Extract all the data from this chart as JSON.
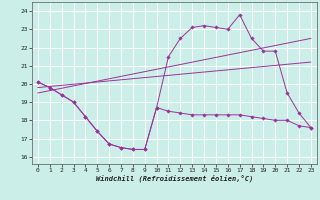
{
  "xlabel": "Windchill (Refroidissement éolien,°C)",
  "background_color": "#cceee8",
  "grid_color": "#ffffff",
  "line_color": "#993399",
  "xlim": [
    -0.5,
    23.5
  ],
  "ylim": [
    15.6,
    24.5
  ],
  "yticks": [
    16,
    17,
    18,
    19,
    20,
    21,
    22,
    23,
    24
  ],
  "xticks": [
    0,
    1,
    2,
    3,
    4,
    5,
    6,
    7,
    8,
    9,
    10,
    11,
    12,
    13,
    14,
    15,
    16,
    17,
    18,
    19,
    20,
    21,
    22,
    23
  ],
  "series": [
    {
      "x": [
        0,
        1,
        2,
        3,
        4,
        5,
        6,
        7,
        8,
        9,
        10,
        11,
        12,
        13,
        14,
        15,
        16,
        17,
        18,
        19,
        20,
        21,
        22,
        23
      ],
      "y": [
        20.1,
        19.8,
        19.4,
        19.0,
        18.2,
        17.4,
        16.7,
        16.5,
        16.4,
        16.4,
        18.7,
        18.5,
        18.4,
        18.3,
        18.3,
        18.3,
        18.3,
        18.3,
        18.2,
        18.1,
        18.0,
        18.0,
        17.7,
        17.6
      ],
      "has_markers": true
    },
    {
      "x": [
        0,
        1,
        2,
        3,
        4,
        5,
        6,
        7,
        8,
        9,
        10,
        11,
        12,
        13,
        14,
        15,
        16,
        17,
        18,
        19,
        20,
        21,
        22,
        23
      ],
      "y": [
        20.1,
        19.8,
        19.4,
        19.0,
        18.2,
        17.4,
        16.7,
        16.5,
        16.4,
        16.4,
        18.7,
        21.5,
        22.5,
        23.1,
        23.2,
        23.1,
        23.0,
        23.8,
        22.5,
        21.8,
        21.8,
        19.5,
        18.4,
        17.6
      ],
      "has_markers": true
    },
    {
      "x": [
        0,
        23
      ],
      "y": [
        19.5,
        22.5
      ],
      "has_markers": false
    },
    {
      "x": [
        0,
        23
      ],
      "y": [
        19.8,
        21.2
      ],
      "has_markers": false
    }
  ]
}
